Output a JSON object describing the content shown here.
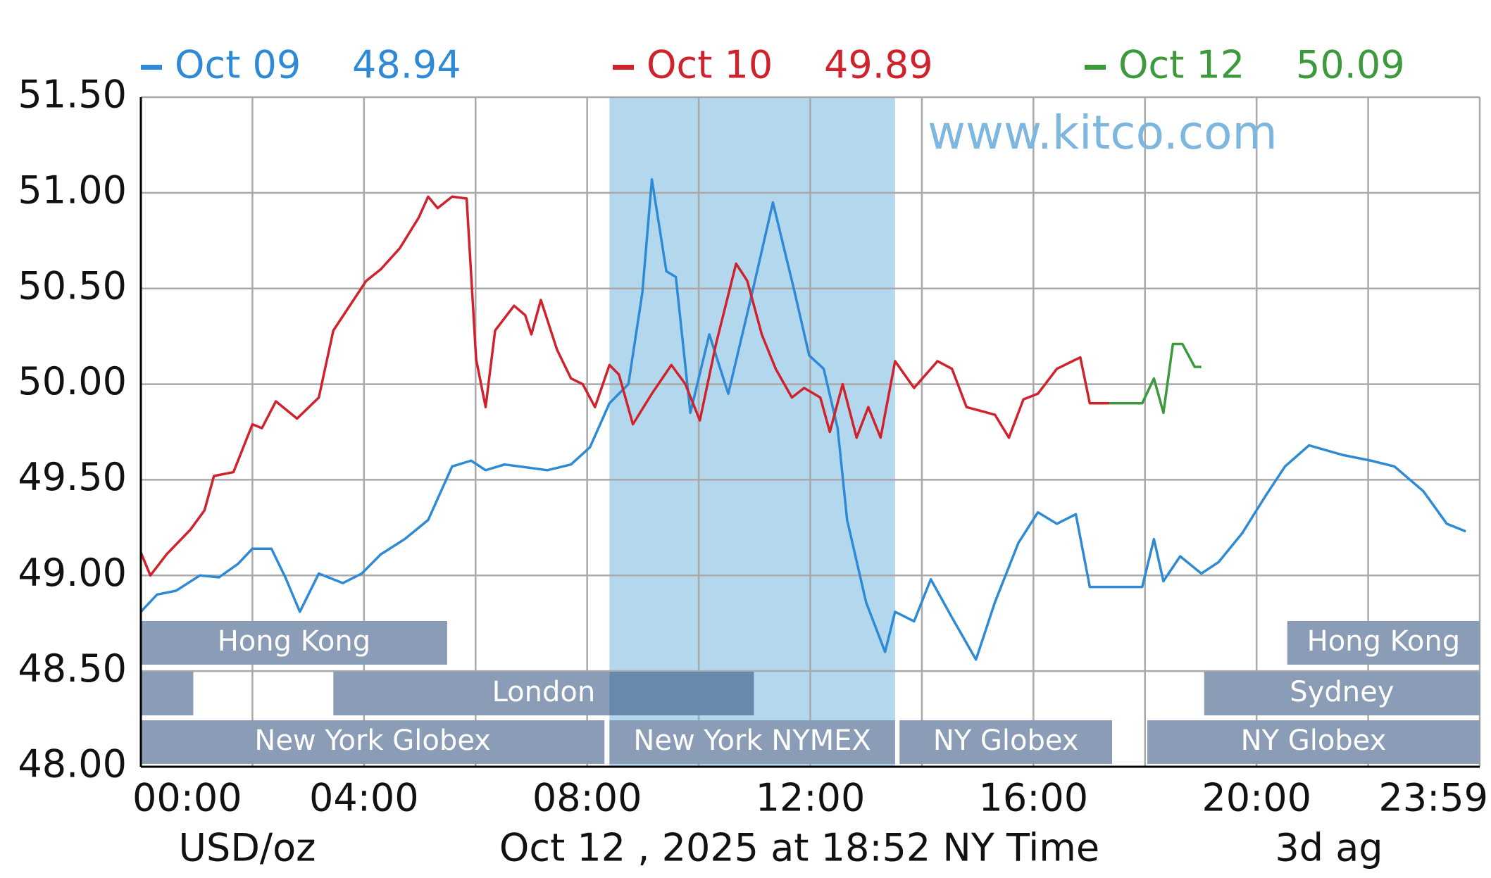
{
  "chart_data": {
    "type": "line",
    "watermark": "www.kitco.com",
    "y_unit": "USD/oz",
    "timestamp": "Oct 12 , 2025 at 18:52 NY Time",
    "footer_right": "3d ag",
    "xlim": [
      0,
      24
    ],
    "ylim": [
      48,
      51.5
    ],
    "xticks": [
      {
        "value": 0,
        "label": "00:00"
      },
      {
        "value": 4,
        "label": "04:00"
      },
      {
        "value": 8,
        "label": "08:00"
      },
      {
        "value": 12,
        "label": "12:00"
      },
      {
        "value": 16,
        "label": "16:00"
      },
      {
        "value": 20,
        "label": "20:00"
      },
      {
        "value": 24,
        "label": "23:59"
      }
    ],
    "xgrid": [
      0,
      2,
      4,
      6,
      8,
      10,
      12,
      14,
      16,
      18,
      20,
      22,
      24
    ],
    "yticks": [
      {
        "value": 48,
        "label": "48.00"
      },
      {
        "value": 48.5,
        "label": "48.50"
      },
      {
        "value": 49,
        "label": "49.00"
      },
      {
        "value": 49.5,
        "label": "49.50"
      },
      {
        "value": 50,
        "label": "50.00"
      },
      {
        "value": 50.5,
        "label": "50.50"
      },
      {
        "value": 51,
        "label": "51.00"
      },
      {
        "value": 51.5,
        "label": "51.50"
      }
    ],
    "grid": true,
    "highlight": [
      8.4,
      13.52
    ],
    "highlight_color": "#b3d7ec",
    "session_color": "#8b9db6",
    "session_overlap_color": "#6889ac",
    "sessions": [
      [
        {
          "label": "Hong Kong",
          "start": 0,
          "end": 5.49
        },
        {
          "label": "Hong Kong",
          "start": 20.55,
          "end": 24
        }
      ],
      [
        {
          "start": 0,
          "end": 0.94
        },
        {
          "label": "London",
          "start": 3.45,
          "end": 10.99
        },
        {
          "label": "Sydney",
          "start": 19.06,
          "end": 24
        }
      ],
      [
        {
          "label": "New York Globex",
          "start": 0,
          "end": 8.31
        },
        {
          "label": "New York NYMEX",
          "start": 8.4,
          "end": 13.52
        },
        {
          "label": "NY Globex",
          "start": 13.6,
          "end": 17.41
        },
        {
          "label": "NY Globex",
          "start": 18.04,
          "end": 24
        }
      ]
    ],
    "series": [
      {
        "name": "Oct 09",
        "color": "#2f8ad6",
        "close": 48.94,
        "x": [
          0,
          0.29,
          0.63,
          1.06,
          1.4,
          1.74,
          2.0,
          2.34,
          2.59,
          2.85,
          3.19,
          3.62,
          3.96,
          4.3,
          4.73,
          5.15,
          5.58,
          5.92,
          6.18,
          6.52,
          7.29,
          7.71,
          8.05,
          8.4,
          8.74,
          8.99,
          9.16,
          9.42,
          9.59,
          9.85,
          10.19,
          10.53,
          10.96,
          11.33,
          11.72,
          11.98,
          12.24,
          12.49,
          12.66,
          13.0,
          13.34,
          13.52,
          13.86,
          14.16,
          14.54,
          14.97,
          15.31,
          15.73,
          16.08,
          16.42,
          16.76,
          17.01,
          17.95,
          18.16,
          18.33,
          18.63,
          19.01,
          19.32,
          19.74,
          20.17,
          20.51,
          20.94,
          21.54,
          22.05,
          22.47,
          22.99,
          23.41,
          23.75
        ],
        "values": [
          48.81,
          48.9,
          48.92,
          49.0,
          48.99,
          49.06,
          49.14,
          49.14,
          48.99,
          48.81,
          49.01,
          48.96,
          49.01,
          49.11,
          49.19,
          49.29,
          49.57,
          49.6,
          49.55,
          49.58,
          49.55,
          49.58,
          49.67,
          49.9,
          50.0,
          50.48,
          51.07,
          50.59,
          50.56,
          49.85,
          50.26,
          49.95,
          50.48,
          50.95,
          50.48,
          50.15,
          50.08,
          49.77,
          49.29,
          48.86,
          48.6,
          48.81,
          48.76,
          48.98,
          48.78,
          48.56,
          48.86,
          49.17,
          49.33,
          49.27,
          49.32,
          48.94,
          48.94,
          49.19,
          48.97,
          49.1,
          49.01,
          49.07,
          49.22,
          49.42,
          49.57,
          49.68,
          49.63,
          49.6,
          49.57,
          49.44,
          49.27,
          49.23
        ]
      },
      {
        "name": "Oct 10",
        "color": "#d0222c",
        "close": 49.89,
        "x": [
          0,
          0.17,
          0.46,
          0.89,
          1.14,
          1.31,
          1.66,
          2.0,
          2.17,
          2.42,
          2.8,
          3.19,
          3.45,
          3.79,
          4.04,
          4.3,
          4.64,
          4.98,
          5.15,
          5.32,
          5.58,
          5.84,
          6.01,
          6.18,
          6.35,
          6.69,
          6.89,
          7.0,
          7.17,
          7.46,
          7.71,
          7.92,
          8.14,
          8.4,
          8.57,
          8.82,
          9.16,
          9.51,
          9.76,
          10.02,
          10.31,
          10.67,
          10.87,
          11.13,
          11.38,
          11.67,
          11.89,
          12.18,
          12.35,
          12.58,
          12.83,
          13.04,
          13.26,
          13.52,
          13.86,
          14.28,
          14.54,
          14.8,
          15.31,
          15.56,
          15.82,
          16.08,
          16.42,
          16.84,
          17.01,
          17.36
        ],
        "values": [
          49.12,
          49.0,
          49.11,
          49.24,
          49.34,
          49.52,
          49.54,
          49.79,
          49.77,
          49.91,
          49.82,
          49.93,
          50.28,
          50.43,
          50.54,
          50.6,
          50.71,
          50.87,
          50.98,
          50.92,
          50.98,
          50.97,
          50.13,
          49.88,
          50.28,
          50.41,
          50.36,
          50.26,
          50.44,
          50.18,
          50.03,
          50.0,
          49.88,
          50.1,
          50.05,
          49.79,
          49.95,
          50.1,
          50.0,
          49.81,
          50.21,
          50.63,
          50.54,
          50.26,
          50.08,
          49.93,
          49.98,
          49.93,
          49.75,
          50.0,
          49.72,
          49.88,
          49.72,
          50.12,
          49.98,
          50.12,
          50.08,
          49.88,
          49.84,
          49.72,
          49.92,
          49.95,
          50.08,
          50.14,
          49.9,
          49.9
        ]
      },
      {
        "name": "Oct 12",
        "color": "#3c9a3c",
        "close": 50.09,
        "x": [
          17.36,
          17.95,
          18.16,
          18.33,
          18.5,
          18.67,
          18.89,
          19.01
        ],
        "values": [
          49.9,
          49.9,
          50.03,
          49.85,
          50.21,
          50.21,
          50.09,
          50.09
        ]
      }
    ]
  }
}
